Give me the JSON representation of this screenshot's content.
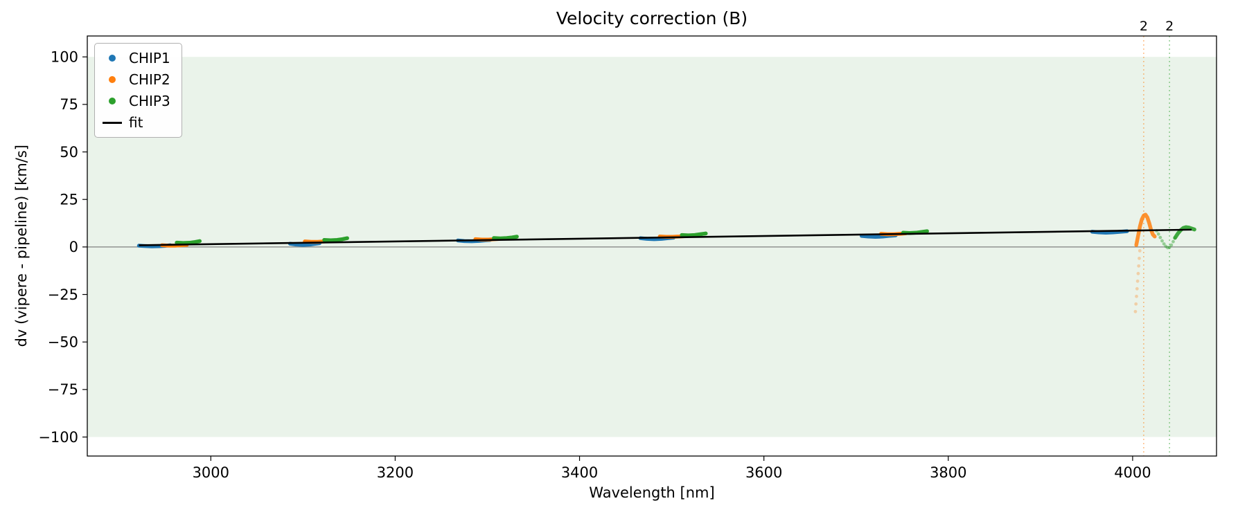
{
  "chart_data": {
    "type": "scatter",
    "title": "Velocity correction (B)",
    "xlabel": "Wavelength [nm]",
    "ylabel": "dv (vipere - pipeline) [km/s]",
    "xlim": [
      2866,
      4091
    ],
    "ylim": [
      -110,
      111
    ],
    "xticks": [
      3000,
      3200,
      3400,
      3600,
      3800,
      4000
    ],
    "yticks": [
      -100,
      -75,
      -50,
      -25,
      0,
      25,
      50,
      75,
      100
    ],
    "band": {
      "ymin": -100,
      "ymax": 100,
      "color": "#eaf3ea"
    },
    "zero_line": {
      "y": 0,
      "color": "#7f7f7f"
    },
    "fit": {
      "x1": 2922,
      "y1": 0.9,
      "x2": 4064,
      "y2": 9.1,
      "color": "#000000"
    },
    "vlines": [
      {
        "x": 4012,
        "color": "#ff7f0e",
        "label": "2"
      },
      {
        "x": 4040,
        "color": "#2ca02c",
        "label": "2"
      }
    ],
    "series": [
      {
        "name": "CHIP1",
        "color": "#1f77b4",
        "segments": [
          {
            "style": "line",
            "opacity": 1,
            "points": [
              [
                2922,
                0.7
              ],
              [
                2928,
                0.5
              ],
              [
                2936,
                0.3
              ],
              [
                2944,
                0.4
              ],
              [
                2951,
                0.6
              ],
              [
                2956,
                0.9
              ]
            ]
          },
          {
            "style": "line",
            "opacity": 1,
            "points": [
              [
                3086,
                1.7
              ],
              [
                3092,
                1.3
              ],
              [
                3100,
                1.1
              ],
              [
                3108,
                1.3
              ],
              [
                3114,
                1.7
              ],
              [
                3118,
                2.0
              ]
            ]
          },
          {
            "style": "line",
            "opacity": 1,
            "points": [
              [
                3268,
                3.4
              ],
              [
                3275,
                3.1
              ],
              [
                3283,
                3.0
              ],
              [
                3291,
                3.2
              ],
              [
                3298,
                3.5
              ],
              [
                3303,
                3.7
              ]
            ]
          },
          {
            "style": "line",
            "opacity": 1,
            "points": [
              [
                3466,
                4.6
              ],
              [
                3473,
                4.3
              ],
              [
                3481,
                4.1
              ],
              [
                3489,
                4.3
              ],
              [
                3496,
                4.6
              ],
              [
                3502,
                4.9
              ]
            ]
          },
          {
            "style": "line",
            "opacity": 1,
            "points": [
              [
                3706,
                5.8
              ],
              [
                3713,
                5.5
              ],
              [
                3721,
                5.3
              ],
              [
                3729,
                5.5
              ],
              [
                3737,
                5.9
              ],
              [
                3743,
                6.1
              ]
            ]
          },
          {
            "style": "line",
            "opacity": 1,
            "points": [
              [
                3956,
                8.0
              ],
              [
                3963,
                7.7
              ],
              [
                3971,
                7.5
              ],
              [
                3979,
                7.7
              ],
              [
                3987,
                8.0
              ],
              [
                3994,
                8.3
              ]
            ]
          }
        ]
      },
      {
        "name": "CHIP2",
        "color": "#ff7f0e",
        "segments": [
          {
            "style": "line",
            "opacity": 1,
            "points": [
              [
                2947,
                0.9
              ],
              [
                2954,
                0.7
              ],
              [
                2961,
                0.7
              ],
              [
                2968,
                0.9
              ],
              [
                2974,
                1.1
              ]
            ]
          },
          {
            "style": "line",
            "opacity": 1,
            "points": [
              [
                3102,
                2.9
              ],
              [
                3109,
                2.7
              ],
              [
                3116,
                2.7
              ],
              [
                3123,
                2.9
              ],
              [
                3129,
                3.2
              ]
            ]
          },
          {
            "style": "line",
            "opacity": 1,
            "points": [
              [
                3287,
                4.1
              ],
              [
                3294,
                3.9
              ],
              [
                3301,
                3.9
              ],
              [
                3308,
                4.1
              ],
              [
                3314,
                4.3
              ]
            ]
          },
          {
            "style": "line",
            "opacity": 1,
            "points": [
              [
                3487,
                5.5
              ],
              [
                3494,
                5.3
              ],
              [
                3501,
                5.3
              ],
              [
                3508,
                5.5
              ],
              [
                3514,
                5.7
              ]
            ]
          },
          {
            "style": "line",
            "opacity": 1,
            "points": [
              [
                3727,
                6.9
              ],
              [
                3734,
                6.7
              ],
              [
                3741,
                6.7
              ],
              [
                3748,
                6.9
              ],
              [
                3754,
                7.2
              ]
            ]
          },
          {
            "style": "dots",
            "opacity": 0.3,
            "points": [
              [
                4003,
                -34
              ],
              [
                4003.6,
                -30
              ],
              [
                4004.2,
                -26
              ],
              [
                4004.8,
                -22
              ],
              [
                4005.4,
                -18
              ],
              [
                4006,
                -14
              ],
              [
                4006.6,
                -10
              ],
              [
                4007.2,
                -6
              ],
              [
                4007.8,
                -2
              ]
            ]
          },
          {
            "style": "line",
            "opacity": 0.85,
            "points": [
              [
                4004,
                1
              ],
              [
                4006,
                6
              ],
              [
                4008,
                11
              ],
              [
                4010,
                14.5
              ],
              [
                4012,
                16.5
              ],
              [
                4014,
                17
              ],
              [
                4016,
                15.5
              ],
              [
                4018,
                12.5
              ],
              [
                4020,
                9
              ],
              [
                4022,
                6.5
              ],
              [
                4024,
                5.5
              ]
            ]
          }
        ]
      },
      {
        "name": "CHIP3",
        "color": "#2ca02c",
        "segments": [
          {
            "style": "line",
            "opacity": 1,
            "points": [
              [
                2963,
                2.3
              ],
              [
                2970,
                2.1
              ],
              [
                2977,
                2.2
              ],
              [
                2983,
                2.6
              ],
              [
                2988,
                3.1
              ]
            ]
          },
          {
            "style": "line",
            "opacity": 1,
            "points": [
              [
                3123,
                3.7
              ],
              [
                3130,
                3.5
              ],
              [
                3137,
                3.7
              ],
              [
                3143,
                4.1
              ],
              [
                3148,
                4.6
              ]
            ]
          },
          {
            "style": "line",
            "opacity": 1,
            "points": [
              [
                3307,
                4.7
              ],
              [
                3314,
                4.5
              ],
              [
                3321,
                4.7
              ],
              [
                3327,
                5.0
              ],
              [
                3332,
                5.4
              ]
            ]
          },
          {
            "style": "line",
            "opacity": 1,
            "points": [
              [
                3511,
                6.3
              ],
              [
                3518,
                6.1
              ],
              [
                3525,
                6.3
              ],
              [
                3531,
                6.7
              ],
              [
                3537,
                7.1
              ]
            ]
          },
          {
            "style": "line",
            "opacity": 1,
            "points": [
              [
                3751,
                7.5
              ],
              [
                3758,
                7.3
              ],
              [
                3765,
                7.5
              ],
              [
                3771,
                7.9
              ],
              [
                3777,
                8.3
              ]
            ]
          },
          {
            "style": "dots",
            "opacity": 0.45,
            "points": [
              [
                4026,
                8.5
              ],
              [
                4028,
                6.8
              ],
              [
                4030,
                5.0
              ],
              [
                4032,
                3.2
              ],
              [
                4034,
                1.6
              ],
              [
                4036,
                0.3
              ],
              [
                4038,
                -0.4
              ],
              [
                4040,
                -0.2
              ],
              [
                4042,
                1.0
              ],
              [
                4044,
                2.8
              ],
              [
                4046,
                4.8
              ]
            ]
          },
          {
            "style": "line",
            "opacity": 0.9,
            "points": [
              [
                4046,
                4.8
              ],
              [
                4049,
                7.0
              ],
              [
                4052,
                8.8
              ],
              [
                4055,
                10.0
              ],
              [
                4058,
                10.4
              ],
              [
                4061,
                10.2
              ],
              [
                4064,
                9.7
              ],
              [
                4067,
                9.2
              ]
            ]
          }
        ]
      }
    ],
    "legend": {
      "entries": [
        {
          "label": "CHIP1",
          "marker": "dot",
          "color": "#1f77b4"
        },
        {
          "label": "CHIP2",
          "marker": "dot",
          "color": "#ff7f0e"
        },
        {
          "label": "CHIP3",
          "marker": "dot",
          "color": "#2ca02c"
        },
        {
          "label": "fit",
          "marker": "line",
          "color": "#000000"
        }
      ]
    }
  }
}
